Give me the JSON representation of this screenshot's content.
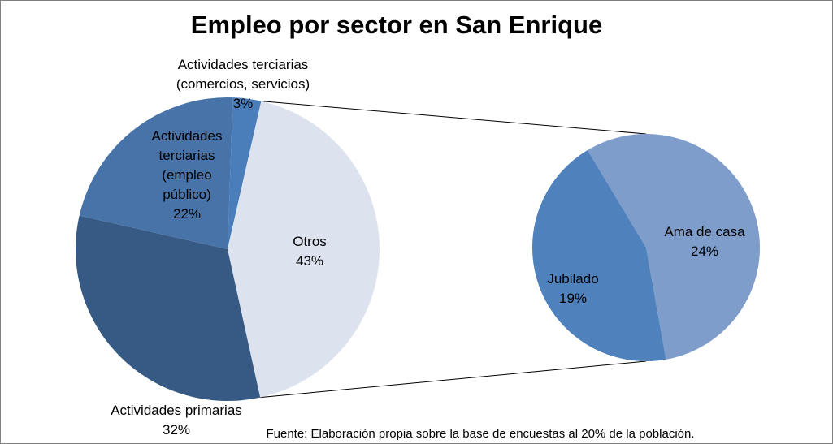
{
  "chart_data": {
    "type": "pie",
    "subtype": "pie-of-pie",
    "title": "Empleo por sector en San Enrique",
    "source": "Fuente: Elaboración propia sobre la base de encuestas al 20% de la población.",
    "main_pie": {
      "slices": [
        {
          "label_lines": [
            "Actividades terciarias",
            "(comercios, servicios)"
          ],
          "pct_label": "3%",
          "value": 3,
          "color": "#4a7ebb"
        },
        {
          "label_lines": [
            "Otros"
          ],
          "pct_label": "43%",
          "value": 43,
          "color": "#dce3ef"
        },
        {
          "label_lines": [
            "Actividades primarias"
          ],
          "pct_label": "32%",
          "value": 32,
          "color": "#365a84"
        },
        {
          "label_lines": [
            "Actividades",
            "terciarias",
            "(empleo",
            "público)"
          ],
          "pct_label": "22%",
          "value": 22,
          "color": "#4873a8"
        }
      ]
    },
    "secondary_pie": {
      "parent": "Otros",
      "slices": [
        {
          "label_lines": [
            "Ama de casa"
          ],
          "pct_label": "24%",
          "value": 24,
          "color": "#7f9dca"
        },
        {
          "label_lines": [
            "Jubilado"
          ],
          "pct_label": "19%",
          "value": 19,
          "color": "#4f81bd"
        }
      ]
    }
  }
}
